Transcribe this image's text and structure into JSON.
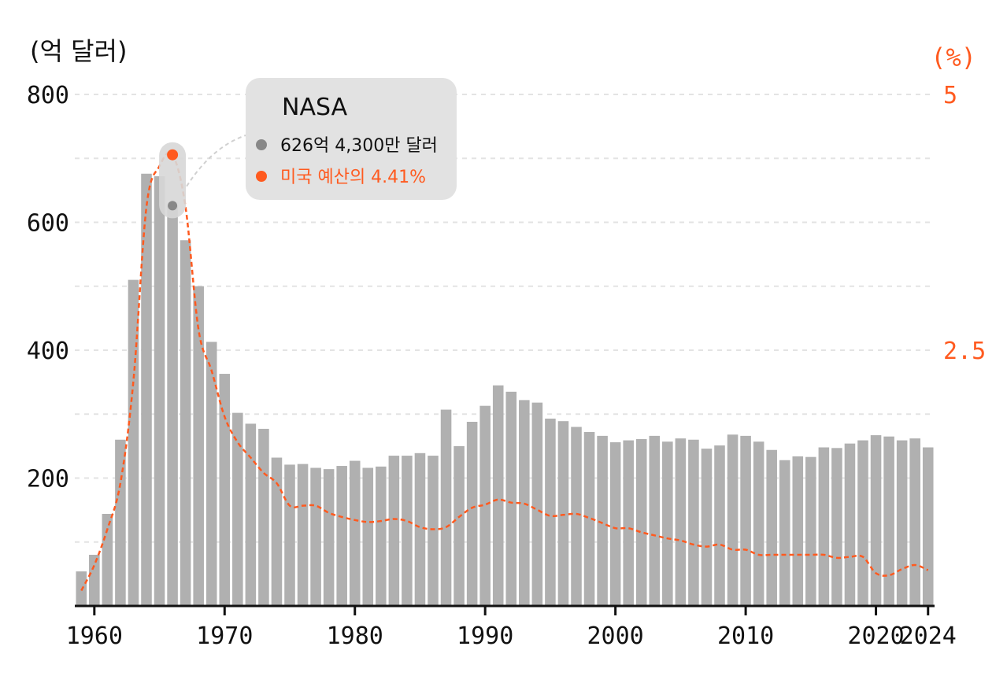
{
  "chart_data": {
    "type": "bar",
    "y_unit_left": "(억 달러)",
    "y_unit_right": "(%)",
    "x_tick_labels": [
      "1960",
      "1970",
      "1980",
      "1990",
      "2000",
      "2010",
      "2020",
      "2024"
    ],
    "x_tick_values": [
      1960,
      1970,
      1980,
      1990,
      2000,
      2010,
      2020,
      2024
    ],
    "y_left_ticks": [
      "200",
      "400",
      "600",
      "800"
    ],
    "y_left_tick_values": [
      200,
      400,
      600,
      800
    ],
    "y_right_ticks": [
      "2.5",
      "5"
    ],
    "y_right_tick_values": [
      2.5,
      5
    ],
    "ylim_left": [
      0,
      800
    ],
    "ylim_right": [
      0,
      5
    ],
    "xlim": [
      1959,
      2024
    ],
    "grid": true,
    "colors": {
      "bars": "#b0b0b0",
      "line": "#ff5a1f",
      "highlight_point": "#888888"
    },
    "x": [
      1959,
      1960,
      1961,
      1962,
      1963,
      1964,
      1965,
      1966,
      1967,
      1968,
      1969,
      1970,
      1971,
      1972,
      1973,
      1974,
      1975,
      1976,
      1977,
      1978,
      1979,
      1980,
      1981,
      1982,
      1983,
      1984,
      1985,
      1986,
      1987,
      1988,
      1989,
      1990,
      1991,
      1992,
      1993,
      1994,
      1995,
      1996,
      1997,
      1998,
      1999,
      2000,
      2001,
      2002,
      2003,
      2004,
      2005,
      2006,
      2007,
      2008,
      2009,
      2010,
      2011,
      2012,
      2013,
      2014,
      2015,
      2016,
      2017,
      2018,
      2019,
      2020,
      2021,
      2022,
      2023,
      2024
    ],
    "series": [
      {
        "axis": "left",
        "render": "bar",
        "values": [
          54,
          80,
          144,
          260,
          510,
          676,
          672,
          626,
          572,
          500,
          413,
          363,
          302,
          285,
          277,
          232,
          221,
          222,
          216,
          214,
          219,
          227,
          216,
          218,
          235,
          235,
          239,
          235,
          307,
          250,
          288,
          313,
          345,
          335,
          322,
          318,
          293,
          289,
          280,
          272,
          266,
          256,
          259,
          261,
          266,
          257,
          262,
          260,
          246,
          251,
          268,
          266,
          257,
          244,
          228,
          234,
          233,
          248,
          247,
          254,
          259,
          267,
          265,
          259,
          262,
          248
        ]
      },
      {
        "axis": "right",
        "render": "line",
        "values": [
          0.15,
          0.4,
          0.75,
          1.2,
          2.2,
          3.9,
          4.3,
          4.41,
          3.9,
          2.7,
          2.3,
          1.85,
          1.6,
          1.45,
          1.3,
          1.2,
          0.98,
          0.98,
          0.98,
          0.91,
          0.87,
          0.84,
          0.82,
          0.83,
          0.85,
          0.83,
          0.77,
          0.75,
          0.77,
          0.87,
          0.96,
          0.99,
          1.04,
          1.01,
          1.0,
          0.94,
          0.88,
          0.89,
          0.9,
          0.86,
          0.81,
          0.76,
          0.76,
          0.72,
          0.69,
          0.66,
          0.64,
          0.6,
          0.58,
          0.6,
          0.55,
          0.55,
          0.5,
          0.5,
          0.5,
          0.5,
          0.5,
          0.5,
          0.47,
          0.48,
          0.48,
          0.32,
          0.3,
          0.36,
          0.4,
          0.35
        ]
      }
    ],
    "highlight": {
      "x": 1966,
      "bar_value": 626,
      "line_value": 4.41
    },
    "tooltip": {
      "title": "NASA",
      "line1": "626억 4,300만 달러",
      "line2": "미국 예산의 4.41%"
    }
  }
}
